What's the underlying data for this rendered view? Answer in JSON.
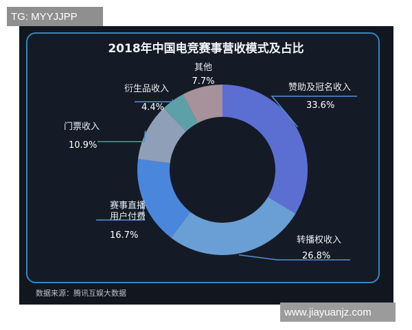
{
  "watermark_top": "TG: MYYJJPP",
  "watermark_bottom": "www.jiayuanjz.com",
  "source_note": "数据来源：腾讯互娱大数据",
  "chart_data": {
    "type": "pie",
    "title": "2018年中国电竞赛事营收模式及占比",
    "donut": true,
    "grid": false,
    "slices": [
      {
        "label_lines": [
          "赞助及冠名收入"
        ],
        "value_label": "33.6%",
        "value": 33.6,
        "color": "#5b6fd3"
      },
      {
        "label_lines": [
          "转播权收入"
        ],
        "value_label": "26.8%",
        "value": 26.8,
        "color": "#6a9fd6"
      },
      {
        "label_lines": [
          "赛事直播",
          "用户付费"
        ],
        "value_label": "16.7%",
        "value": 16.7,
        "color": "#4a87dc"
      },
      {
        "label_lines": [
          "门票收入"
        ],
        "value_label": "10.9%",
        "value": 10.9,
        "color": "#8f9fb8"
      },
      {
        "label_lines": [
          "衍生品收入"
        ],
        "value_label": "4.4%",
        "value": 4.4,
        "color": "#5ea0a8"
      },
      {
        "label_lines": [
          "其他"
        ],
        "value_label": "7.7%",
        "value": 7.7,
        "color": "#a7929c"
      }
    ]
  }
}
